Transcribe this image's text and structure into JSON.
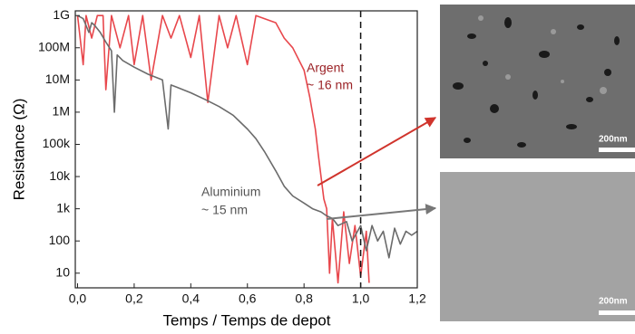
{
  "chart_data": {
    "type": "line",
    "x_label": "Temps / Temps de depot",
    "y_label": "Resistance (Ω)",
    "log_y": true,
    "xlim": [
      -0.008,
      1.2
    ],
    "ylim": [
      3.5,
      1400000000
    ],
    "xticks": [
      {
        "value": 0,
        "label": "0,0"
      },
      {
        "value": 0.2,
        "label": "0,2"
      },
      {
        "value": 0.4,
        "label": "0,4"
      },
      {
        "value": 0.6,
        "label": "0,6"
      },
      {
        "value": 0.8,
        "label": "0,8"
      },
      {
        "value": 1.0,
        "label": "1,0"
      },
      {
        "value": 1.2,
        "label": "1,2"
      }
    ],
    "yticks": [
      10,
      100,
      {
        "value": 1000,
        "label": "1k"
      },
      {
        "value": 10000,
        "label": "10k"
      },
      {
        "value": 100000,
        "label": "100k"
      },
      {
        "value": 1000000,
        "label": "1M"
      },
      {
        "value": 10000000,
        "label": "10M"
      },
      {
        "value": 100000000,
        "label": "100M"
      },
      {
        "value": 1000000000,
        "label": "1G"
      }
    ],
    "vline": 1.0,
    "annotations": [
      "Argent",
      "~ 16 nm",
      "Aluminium",
      "~ 15 nm"
    ],
    "series": [
      {
        "name": "Aluminium",
        "color": "#6b6b6b",
        "x": [
          0,
          0.02,
          0.04,
          0.05,
          0.06,
          0.08,
          0.1,
          0.12,
          0.13,
          0.14,
          0.16,
          0.2,
          0.25,
          0.3,
          0.32,
          0.33,
          0.35,
          0.4,
          0.45,
          0.5,
          0.55,
          0.6,
          0.63,
          0.66,
          0.7,
          0.73,
          0.76,
          0.8,
          0.83,
          0.86,
          0.88,
          0.9,
          0.92,
          0.95,
          0.97,
          1.0,
          1.02,
          1.04,
          1.06,
          1.08,
          1.1,
          1.12,
          1.14,
          1.16,
          1.18,
          1.2
        ],
        "values": [
          1000000000.0,
          800000000.0,
          300000000.0,
          600000000.0,
          500000000.0,
          300000000.0,
          150000000.0,
          80000000.0,
          1000000.0,
          60000000.0,
          40000000.0,
          25000000.0,
          15000000.0,
          10000000.0,
          300000.0,
          7000000.0,
          6000000.0,
          4000000.0,
          2500000.0,
          1500000.0,
          800000.0,
          300000.0,
          150000.0,
          60000.0,
          15000.0,
          5000.0,
          2500.0,
          1500.0,
          1000.0,
          800,
          600,
          500,
          300,
          400,
          100,
          300,
          50,
          300,
          100,
          200,
          30,
          250,
          80,
          200,
          150,
          200
        ]
      },
      {
        "name": "Argent",
        "color": "#e8474c",
        "x": [
          0,
          0.02,
          0.03,
          0.05,
          0.07,
          0.09,
          0.1,
          0.12,
          0.15,
          0.18,
          0.2,
          0.23,
          0.26,
          0.3,
          0.33,
          0.36,
          0.4,
          0.43,
          0.46,
          0.5,
          0.53,
          0.56,
          0.6,
          0.63,
          0.66,
          0.7,
          0.73,
          0.76,
          0.8,
          0.82,
          0.84,
          0.85,
          0.86,
          0.87,
          0.88,
          0.89,
          0.9,
          0.92,
          0.94,
          0.96,
          0.98,
          1.0,
          1.02,
          1.03
        ],
        "values": [
          1000000000.0,
          30000000.0,
          1000000000.0,
          200000000.0,
          1000000000.0,
          1000000000.0,
          5000000.0,
          1000000000.0,
          100000000.0,
          1000000000.0,
          30000000.0,
          1000000000.0,
          10000000.0,
          1000000000.0,
          200000000.0,
          1000000000.0,
          50000000.0,
          1000000000.0,
          2000000.0,
          1000000000.0,
          100000000.0,
          1000000000.0,
          30000000.0,
          1000000000.0,
          800000000.0,
          600000000.0,
          200000000.0,
          100000000.0,
          20000000.0,
          3000000.0,
          300000.0,
          50000.0,
          10000.0,
          2000.0,
          1000.0,
          10,
          500,
          5,
          800,
          20,
          300,
          8,
          200,
          5
        ]
      }
    ]
  },
  "scale_labels": [
    "200nm",
    "200nm"
  ]
}
